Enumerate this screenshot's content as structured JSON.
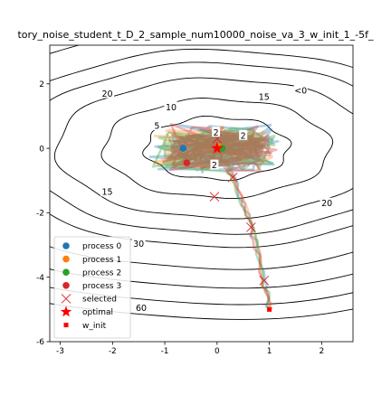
{
  "chart_data": {
    "type": "line",
    "title": "tory_noise_student_t_D_2_sample_num10000_noise_va_3_w_init_1_-5f_",
    "xlabel": "",
    "ylabel": "",
    "xlim": [
      -3.2,
      2.6
    ],
    "ylim": [
      -6,
      3.2
    ],
    "xticks": [
      "-3",
      "-2",
      "-1",
      "0",
      "1",
      "2"
    ],
    "xtick_values": [
      -3,
      -2,
      -1,
      0,
      1,
      2
    ],
    "yticks": [
      "2",
      "0",
      "-2",
      "-4",
      "-6"
    ],
    "ytick_values": [
      2,
      0,
      -2,
      -4,
      -6
    ],
    "grid": false,
    "legend_position": "lower-left",
    "contour_levels": [
      2,
      5,
      10,
      15,
      20,
      30,
      40,
      50,
      60
    ],
    "contour_labels": [
      {
        "text": "2",
        "x": -0.02,
        "y": 0.5
      },
      {
        "text": "2",
        "x": 0.5,
        "y": 0.4
      },
      {
        "text": "2",
        "x": -0.05,
        "y": -0.52
      },
      {
        "text": "5",
        "x": -1.15,
        "y": 0.7
      },
      {
        "text": "10",
        "x": -0.88,
        "y": 1.28
      },
      {
        "text": "15",
        "x": 0.9,
        "y": 1.6
      },
      {
        "text": "15",
        "x": -2.1,
        "y": -1.35
      },
      {
        "text": "20",
        "x": -2.1,
        "y": 1.7
      },
      {
        "text": "20",
        "x": 2.1,
        "y": -1.7
      },
      {
        "text": "30",
        "x": -1.5,
        "y": -2.95
      },
      {
        "text": "<0",
        "x": 1.6,
        "y": 1.8
      },
      {
        "text": "60",
        "x": -1.45,
        "y": -4.95
      }
    ],
    "series": [
      {
        "name": "process 0",
        "color": "#1f77b4",
        "start": [
          1.0,
          -5.0
        ],
        "end": [
          -0.65,
          0.0
        ]
      },
      {
        "name": "process 1",
        "color": "#ff7f0e",
        "start": [
          1.0,
          -5.0
        ],
        "end": [
          0.05,
          0.05
        ]
      },
      {
        "name": "process 2",
        "color": "#2ca02c",
        "start": [
          1.0,
          -5.0
        ],
        "end": [
          0.1,
          0.0
        ]
      },
      {
        "name": "process 3",
        "color": "#d62728",
        "start": [
          1.0,
          -5.0
        ],
        "end": [
          -0.58,
          -0.45
        ]
      }
    ],
    "path_waypoints": [
      [
        1.0,
        -5.0
      ],
      [
        0.92,
        -4.3
      ],
      [
        0.8,
        -3.3
      ],
      [
        0.65,
        -2.5
      ],
      [
        0.5,
        -1.7
      ],
      [
        0.3,
        -0.9
      ],
      [
        0.1,
        -0.3
      ],
      [
        0.0,
        0.0
      ]
    ],
    "selected": [
      [
        0.9,
        -4.1
      ],
      [
        0.65,
        -2.45
      ],
      [
        -0.05,
        -1.5
      ],
      [
        0.3,
        -0.9
      ],
      [
        0.0,
        0.3
      ]
    ],
    "optimal": [
      0.0,
      0.0
    ],
    "w_init": [
      1.0,
      -5.0
    ],
    "legend": [
      "process 0",
      "process 1",
      "process 2",
      "process 3",
      "selected",
      "optimal",
      "w_init"
    ],
    "colors": {
      "process0": "#1f77b4",
      "process1": "#ff7f0e",
      "process2": "#2ca02c",
      "process3": "#d62728",
      "selected": "#d62728",
      "optimal": "#ff0000",
      "w_init": "#ff0000",
      "contour": "#000000"
    }
  }
}
